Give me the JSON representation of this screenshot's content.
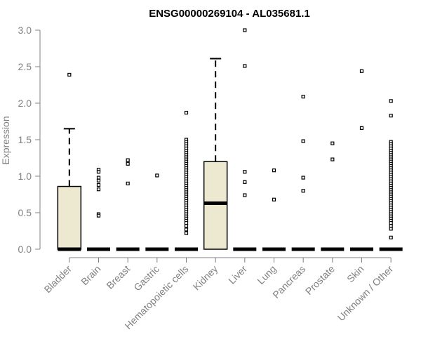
{
  "chart_data": {
    "type": "box",
    "title": "ENSG00000269104 - AL035681.1",
    "xlabel": "",
    "ylabel": "Expression",
    "ylim": [
      0,
      3.0
    ],
    "yticks": [
      0.0,
      0.5,
      1.0,
      1.5,
      2.0,
      2.5,
      3.0
    ],
    "ytick_labels": [
      "0.0",
      "0.5",
      "1.0",
      "1.5",
      "2.0",
      "2.5",
      "3.0"
    ],
    "box_fill": "#ede8d0",
    "categories": [
      "Bladder",
      "Brain",
      "Breast",
      "Gastric",
      "Hematopoietic cells",
      "Kidney",
      "Liver",
      "Lung",
      "Pancreas",
      "Prostate",
      "Skin",
      "Unknown / Other"
    ],
    "boxes": [
      {
        "category": "Bladder",
        "q1": 0,
        "median": 0,
        "q3": 0.86,
        "whisker_low": 0,
        "whisker_high": 1.65,
        "outliers": [
          2.39
        ]
      },
      {
        "category": "Brain",
        "q1": 0,
        "median": 0,
        "q3": 0,
        "whisker_low": 0,
        "whisker_high": 0,
        "outliers": [
          1.09,
          1.06,
          0.98,
          0.94,
          0.88,
          0.82,
          0.48,
          0.46
        ]
      },
      {
        "category": "Breast",
        "q1": 0,
        "median": 0,
        "q3": 0,
        "whisker_low": 0,
        "whisker_high": 0,
        "outliers": [
          1.22,
          1.17,
          0.9
        ]
      },
      {
        "category": "Gastric",
        "q1": 0,
        "median": 0,
        "q3": 0,
        "whisker_low": 0,
        "whisker_high": 0,
        "outliers": [
          1.01
        ]
      },
      {
        "category": "Hematopoietic cells",
        "q1": 0,
        "median": 0,
        "q3": 0,
        "whisker_low": 0,
        "whisker_high": 0,
        "outliers": [
          1.87,
          1.5,
          1.47,
          1.44,
          1.41,
          1.38,
          1.35,
          1.32,
          1.29,
          1.26,
          1.23,
          1.2,
          1.17,
          1.14,
          1.11,
          1.08,
          1.05,
          1.02,
          0.99,
          0.96,
          0.93,
          0.9,
          0.87,
          0.84,
          0.81,
          0.78,
          0.75,
          0.72,
          0.69,
          0.66,
          0.63,
          0.6,
          0.57,
          0.54,
          0.51,
          0.48,
          0.45,
          0.42,
          0.39,
          0.36,
          0.32,
          0.27,
          0.22
        ]
      },
      {
        "category": "Kidney",
        "q1": 0,
        "median": 0.63,
        "q3": 1.2,
        "whisker_low": 0,
        "whisker_high": 2.61,
        "outliers": []
      },
      {
        "category": "Liver",
        "q1": 0,
        "median": 0,
        "q3": 0,
        "whisker_low": 0,
        "whisker_high": 0,
        "outliers": [
          3.0,
          2.51,
          1.06,
          0.92,
          0.74
        ]
      },
      {
        "category": "Lung",
        "q1": 0,
        "median": 0,
        "q3": 0,
        "whisker_low": 0,
        "whisker_high": 0,
        "outliers": [
          1.08,
          0.68
        ]
      },
      {
        "category": "Pancreas",
        "q1": 0,
        "median": 0,
        "q3": 0,
        "whisker_low": 0,
        "whisker_high": 0,
        "outliers": [
          2.09,
          1.48,
          0.98,
          0.8
        ]
      },
      {
        "category": "Prostate",
        "q1": 0,
        "median": 0,
        "q3": 0,
        "whisker_low": 0,
        "whisker_high": 0,
        "outliers": [
          1.45,
          1.23
        ]
      },
      {
        "category": "Skin",
        "q1": 0,
        "median": 0,
        "q3": 0,
        "whisker_low": 0,
        "whisker_high": 0,
        "outliers": [
          2.44,
          1.66
        ]
      },
      {
        "category": "Unknown / Other",
        "q1": 0,
        "median": 0,
        "q3": 0,
        "whisker_low": 0,
        "whisker_high": 0,
        "outliers": [
          2.03,
          1.83,
          1.47,
          1.44,
          1.41,
          1.38,
          1.35,
          1.32,
          1.29,
          1.26,
          1.23,
          1.2,
          1.17,
          1.14,
          1.11,
          1.08,
          1.05,
          1.02,
          0.99,
          0.96,
          0.93,
          0.9,
          0.87,
          0.84,
          0.81,
          0.78,
          0.75,
          0.72,
          0.69,
          0.66,
          0.63,
          0.6,
          0.57,
          0.54,
          0.51,
          0.48,
          0.45,
          0.42,
          0.39,
          0.36,
          0.32,
          0.28,
          0.16
        ]
      }
    ]
  }
}
